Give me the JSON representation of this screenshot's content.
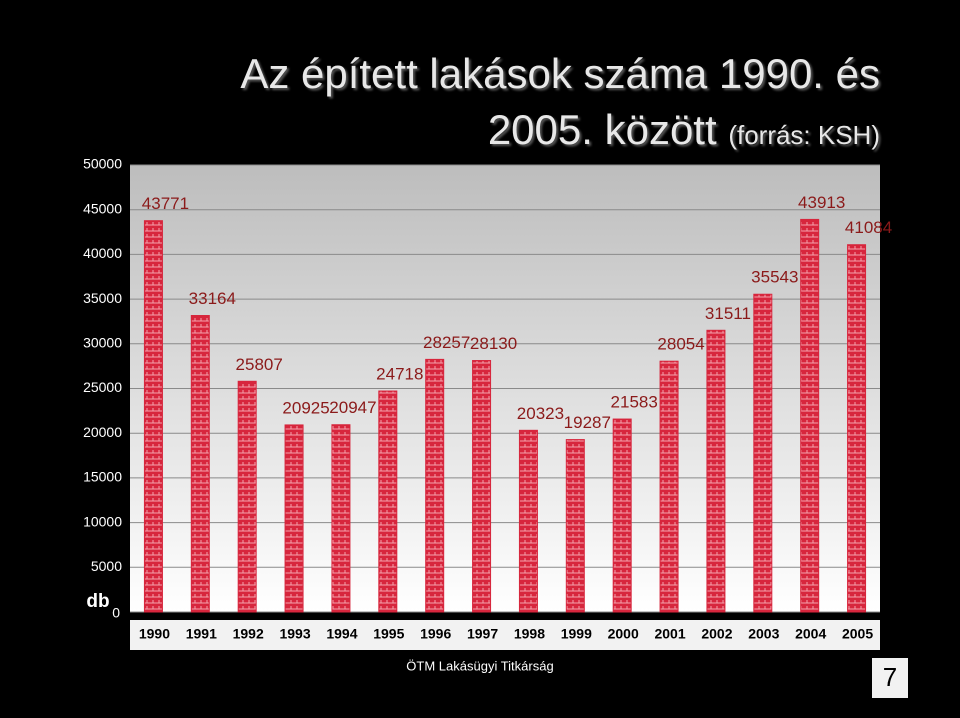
{
  "chart_data": {
    "type": "bar",
    "title": "Az épített lakások száma 1990. és 2005. között",
    "subtitle": "(forrás: KSH)",
    "y_label": "db",
    "footer": "ÖTM Lakásügyi Titkárság",
    "page_number": "7",
    "categories": [
      "1990",
      "1991",
      "1992",
      "1993",
      "1994",
      "1995",
      "1996",
      "1997",
      "1998",
      "1999",
      "2000",
      "2001",
      "2002",
      "2003",
      "2004",
      "2005"
    ],
    "values": [
      43771,
      33164,
      25807,
      20925,
      20947,
      24718,
      28257,
      28130,
      20323,
      19287,
      21583,
      28054,
      31511,
      35543,
      43913,
      41084
    ],
    "color": "#d7263d",
    "ylim": [
      0,
      50000
    ],
    "yticks": [
      0,
      5000,
      10000,
      15000,
      20000,
      25000,
      30000,
      35000,
      40000,
      45000,
      50000
    ],
    "grid": true
  }
}
